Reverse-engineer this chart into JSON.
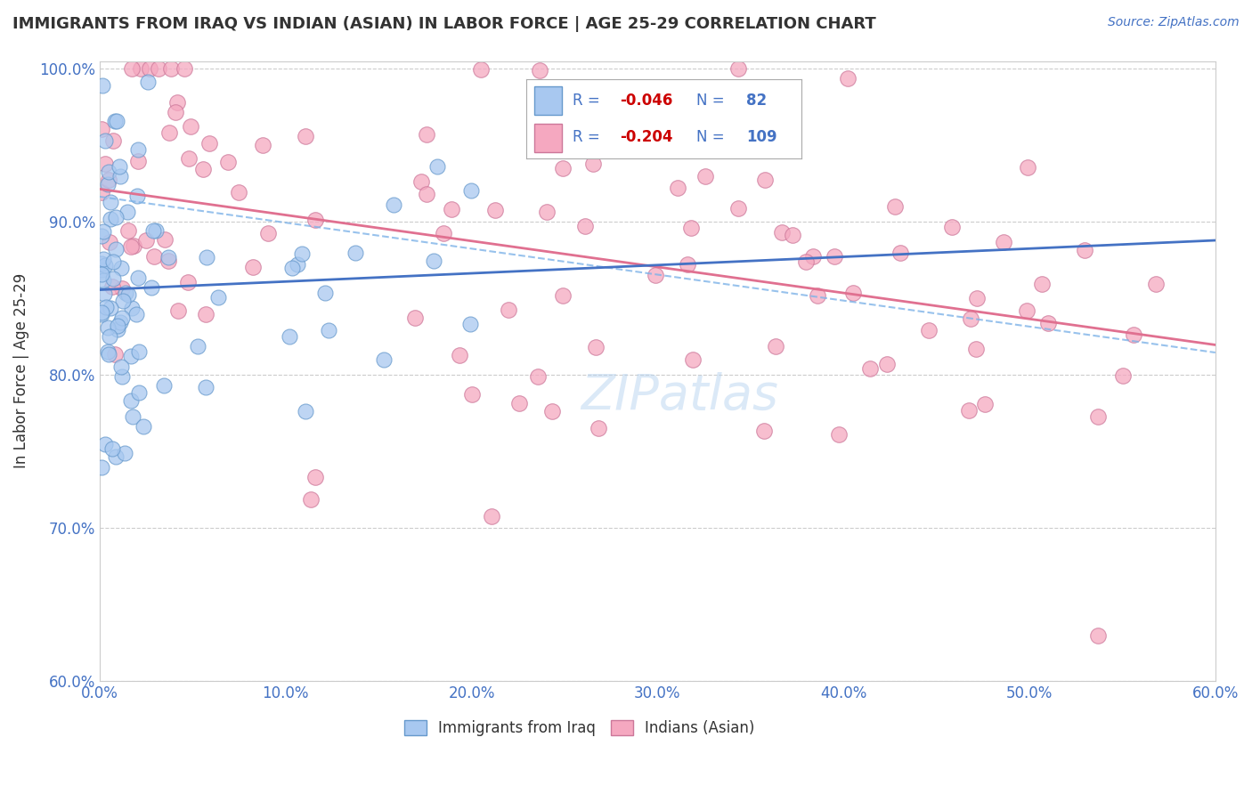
{
  "title": "IMMIGRANTS FROM IRAQ VS INDIAN (ASIAN) IN LABOR FORCE | AGE 25-29 CORRELATION CHART",
  "source": "Source: ZipAtlas.com",
  "ylabel": "In Labor Force | Age 25-29",
  "xlim": [
    0.0,
    0.6
  ],
  "ylim": [
    0.6,
    1.005
  ],
  "xtick_vals": [
    0.0,
    0.1,
    0.2,
    0.3,
    0.4,
    0.5,
    0.6
  ],
  "ytick_vals": [
    0.6,
    0.7,
    0.8,
    0.9,
    1.0
  ],
  "iraq_color": "#A8C8F0",
  "iraq_edge_color": "#6699CC",
  "india_color": "#F5A8C0",
  "india_edge_color": "#CC7799",
  "iraq_R": -0.046,
  "iraq_N": 82,
  "india_R": -0.204,
  "india_N": 109,
  "legend_label_iraq": "Immigrants from Iraq",
  "legend_label_india": "Indians (Asian)",
  "iraq_trend_color": "#4472C4",
  "india_trend_color_solid": "#E07090",
  "india_trend_color_dashed": "#7EB3E8",
  "background_color": "#FFFFFF",
  "grid_color": "#CCCCCC",
  "title_color": "#333333",
  "tick_color": "#4472C4",
  "R_color": "#CC0000",
  "N_color": "#4472C4"
}
